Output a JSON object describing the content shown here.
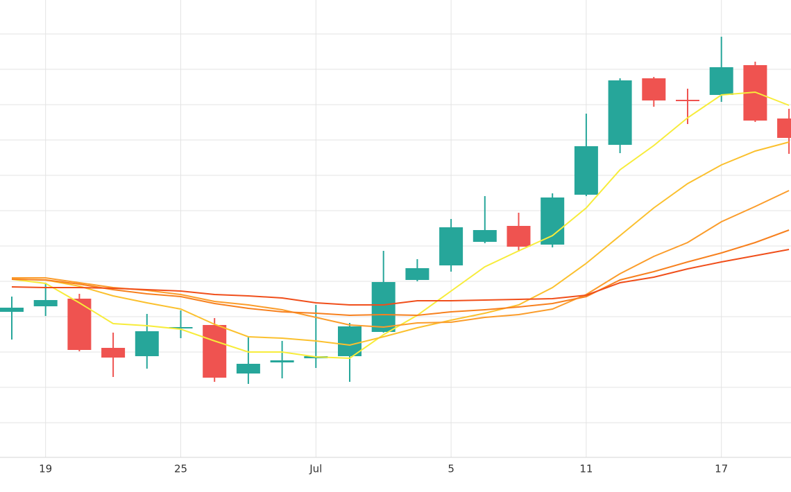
{
  "chart_data": {
    "type": "candlestick",
    "categories": [
      null,
      "19",
      null,
      null,
      null,
      "25",
      null,
      null,
      null,
      "Jul",
      null,
      null,
      null,
      "5",
      null,
      null,
      null,
      "11",
      null,
      null,
      null,
      "17",
      null,
      null
    ],
    "open": [
      210,
      218,
      229,
      158,
      146,
      186,
      191,
      121,
      137,
      143,
      146,
      181,
      256,
      277,
      311,
      334,
      307,
      379,
      451,
      547,
      516,
      523,
      566,
      489
    ],
    "high": [
      232,
      252,
      236,
      180,
      207,
      212,
      201,
      175,
      168,
      220,
      194,
      298,
      286,
      344,
      377,
      353,
      381,
      496,
      547,
      549,
      532,
      607,
      571,
      503
    ],
    "low": [
      170,
      204,
      153,
      116,
      128,
      172,
      109,
      106,
      114,
      129,
      109,
      180,
      254,
      268,
      309,
      297,
      303,
      377,
      439,
      506,
      481,
      513,
      484,
      438
    ],
    "close": [
      216,
      227,
      155,
      144,
      182,
      188,
      115,
      135,
      140,
      146,
      189,
      253,
      273,
      332,
      328,
      304,
      375,
      449,
      544,
      515,
      514,
      563,
      486,
      461
    ],
    "up_color": "#26a69a",
    "down_color": "#ef5350",
    "lines": [
      {
        "color": "#f7ec3a",
        "values": [
          257,
          251,
          223,
          193,
          190,
          185,
          168,
          152,
          152,
          145,
          143,
          177,
          205,
          240,
          275,
          298,
          320,
          360,
          415,
          450,
          490,
          523,
          527,
          508
        ]
      },
      {
        "color": "#fbc02d",
        "values": [
          257,
          256,
          247,
          233,
          223,
          214,
          192,
          174,
          172,
          168,
          162,
          174,
          187,
          198,
          208,
          220,
          245,
          280,
          320,
          360,
          395,
          422,
          442,
          455
        ]
      },
      {
        "color": "#fb9c2a",
        "values": [
          259,
          259,
          252,
          245,
          241,
          235,
          225,
          220,
          213,
          202,
          191,
          188,
          194,
          195,
          202,
          206,
          214,
          235,
          265,
          290,
          310,
          340,
          362,
          385
        ]
      },
      {
        "color": "#f7801e",
        "values": [
          257,
          256,
          250,
          242,
          236,
          232,
          222,
          215,
          210,
          208,
          205,
          206,
          205,
          210,
          213,
          217,
          222,
          232,
          256,
          268,
          282,
          295,
          310,
          328
        ]
      },
      {
        "color": "#f04e1a",
        "values": [
          246,
          245,
          245,
          244,
          242,
          240,
          235,
          233,
          230,
          223,
          220,
          220,
          226,
          226,
          227,
          228,
          229,
          234,
          252,
          260,
          272,
          282,
          291,
          300
        ]
      }
    ],
    "ylim": [
      0,
      660
    ],
    "yticks": [
      50,
      101,
      152,
      203,
      254,
      305,
      356,
      407,
      458,
      509,
      560,
      611
    ],
    "grid": true
  }
}
